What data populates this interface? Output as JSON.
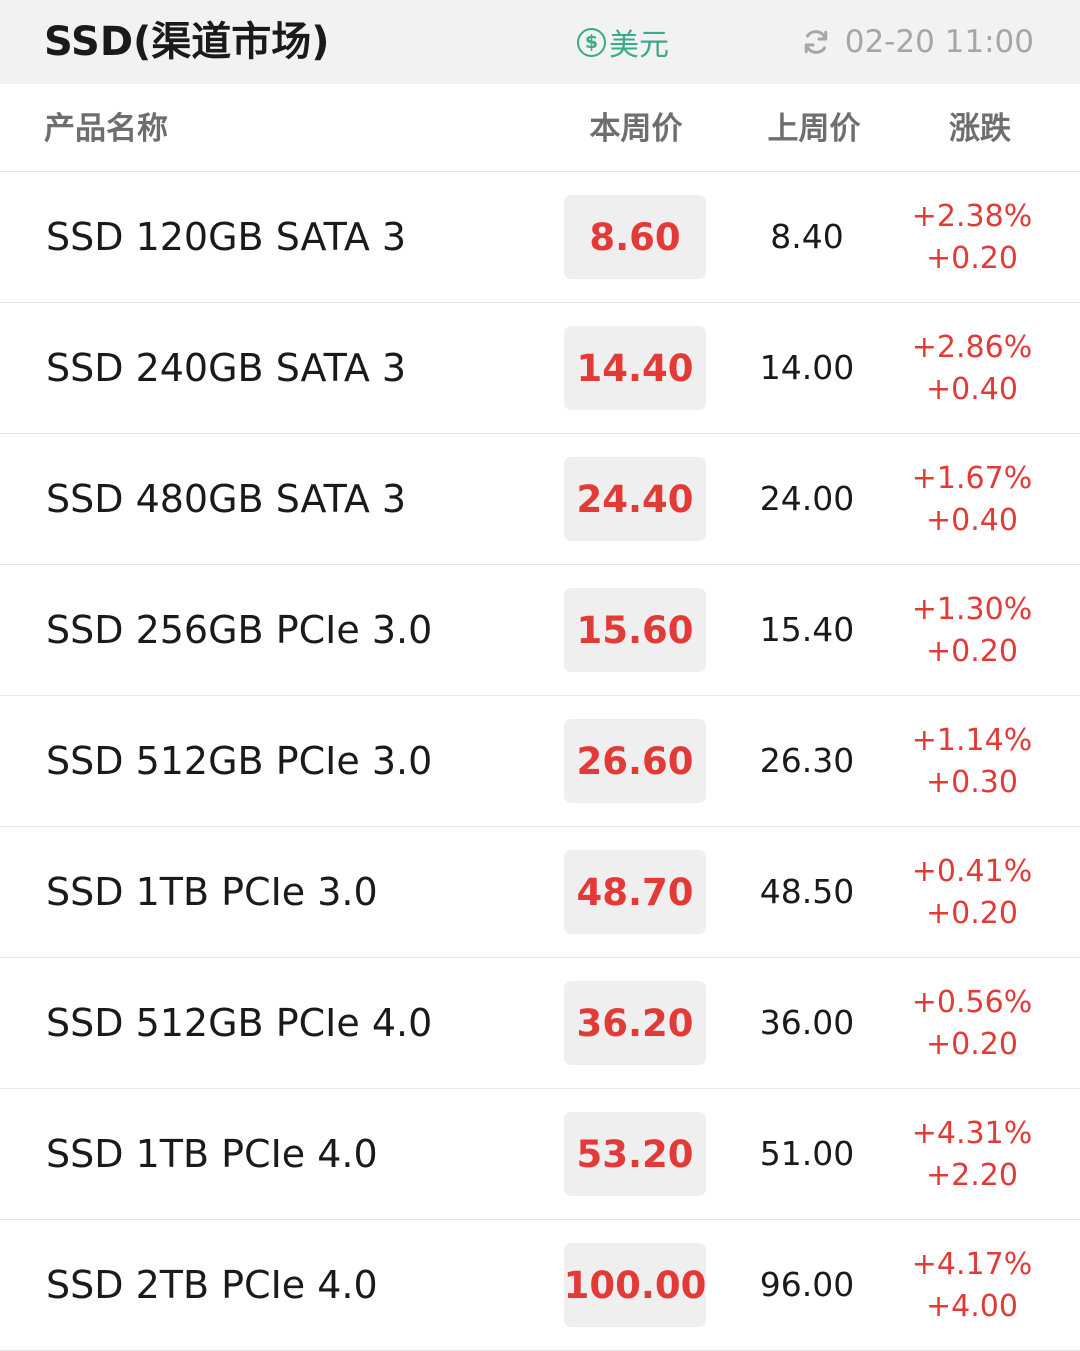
{
  "header": {
    "title": "SSD(渠道市场)",
    "currency_label": "美元",
    "currency_icon": "dollar-coin-icon",
    "refresh_icon": "refresh-icon",
    "updated": "02-20 11:00"
  },
  "columns": {
    "name": "产品名称",
    "this_week": "本周价",
    "last_week": "上周价",
    "change": "涨跌"
  },
  "colors": {
    "up": "#e23b37",
    "accent": "#3aaa8a"
  },
  "rows": [
    {
      "name": "SSD 120GB SATA 3",
      "this_week": "8.60",
      "last_week": "8.40",
      "change_pct": "+2.38%",
      "change_abs": "+0.20"
    },
    {
      "name": "SSD 240GB SATA 3",
      "this_week": "14.40",
      "last_week": "14.00",
      "change_pct": "+2.86%",
      "change_abs": "+0.40"
    },
    {
      "name": "SSD 480GB SATA 3",
      "this_week": "24.40",
      "last_week": "24.00",
      "change_pct": "+1.67%",
      "change_abs": "+0.40"
    },
    {
      "name": "SSD 256GB PCIe 3.0",
      "this_week": "15.60",
      "last_week": "15.40",
      "change_pct": "+1.30%",
      "change_abs": "+0.20"
    },
    {
      "name": "SSD 512GB PCIe 3.0",
      "this_week": "26.60",
      "last_week": "26.30",
      "change_pct": "+1.14%",
      "change_abs": "+0.30"
    },
    {
      "name": "SSD 1TB PCIe 3.0",
      "this_week": "48.70",
      "last_week": "48.50",
      "change_pct": "+0.41%",
      "change_abs": "+0.20"
    },
    {
      "name": "SSD 512GB PCIe 4.0",
      "this_week": "36.20",
      "last_week": "36.00",
      "change_pct": "+0.56%",
      "change_abs": "+0.20"
    },
    {
      "name": "SSD 1TB PCIe 4.0",
      "this_week": "53.20",
      "last_week": "51.00",
      "change_pct": "+4.31%",
      "change_abs": "+2.20"
    },
    {
      "name": "SSD 2TB PCIe 4.0",
      "this_week": "100.00",
      "last_week": "96.00",
      "change_pct": "+4.17%",
      "change_abs": "+4.00"
    }
  ]
}
